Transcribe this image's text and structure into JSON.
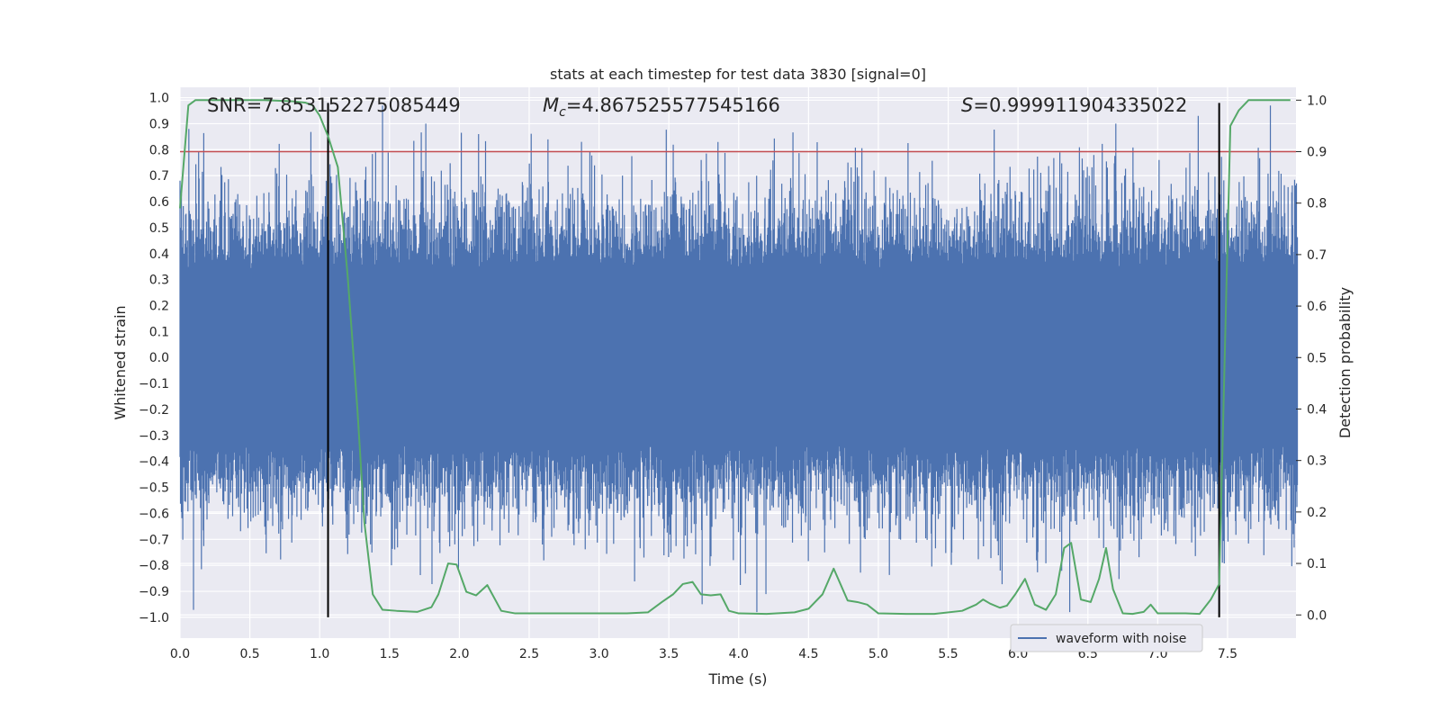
{
  "chart_data": {
    "type": "line",
    "title": "stats at each timestep for test data 3830 [signal=0]",
    "xlabel": "Time (s)",
    "ylabel_left": "Whitened strain",
    "ylabel_right": "Detection probability",
    "xlim": [
      0.0,
      7.99
    ],
    "ylim_left": [
      -1.08,
      1.04
    ],
    "ylim_right": [
      -0.045,
      1.025
    ],
    "x_ticks": [
      "0.0",
      "0.5",
      "1.0",
      "1.5",
      "2.0",
      "2.5",
      "3.0",
      "3.5",
      "4.0",
      "4.5",
      "5.0",
      "5.5",
      "6.0",
      "6.5",
      "7.0",
      "7.5"
    ],
    "x_tick_values": [
      0.0,
      0.5,
      1.0,
      1.5,
      2.0,
      2.5,
      3.0,
      3.5,
      4.0,
      4.5,
      5.0,
      5.5,
      6.0,
      6.5,
      7.0,
      7.5
    ],
    "y_left_ticks": [
      "1.0",
      "0.9",
      "0.8",
      "0.7",
      "0.6",
      "0.5",
      "0.4",
      "0.3",
      "0.2",
      "0.1",
      "0.0",
      "−0.1",
      "−0.2",
      "−0.3",
      "−0.4",
      "−0.5",
      "−0.6",
      "−0.7",
      "−0.8",
      "−0.9",
      "−1.0"
    ],
    "y_left_tick_values": [
      1.0,
      0.9,
      0.8,
      0.7,
      0.6,
      0.5,
      0.4,
      0.3,
      0.2,
      0.1,
      0.0,
      -0.1,
      -0.2,
      -0.3,
      -0.4,
      -0.5,
      -0.6,
      -0.7,
      -0.8,
      -0.9,
      -1.0
    ],
    "y_right_ticks": [
      "1.0",
      "0.9",
      "0.8",
      "0.7",
      "0.6",
      "0.5",
      "0.4",
      "0.3",
      "0.2",
      "0.1",
      "0.0"
    ],
    "y_right_tick_values": [
      1.0,
      0.9,
      0.8,
      0.7,
      0.6,
      0.5,
      0.4,
      0.3,
      0.2,
      0.1,
      0.0
    ],
    "annotations": {
      "snr": "SNR=7.853152275085449",
      "mc_symbol": "M",
      "mc_subscript": "c",
      "mc_value": "=4.867525577545166",
      "s_symbol": "S",
      "s_value": "=0.999911904335022"
    },
    "threshold": {
      "axis": "right",
      "value": 0.9,
      "color": "#c44e52"
    },
    "vlines": [
      {
        "x": 1.06,
        "y_range_left": [
          -1.0,
          0.98
        ],
        "color": "#000000"
      },
      {
        "x": 7.44,
        "y_range_left": [
          -1.0,
          0.98
        ],
        "color": "#000000"
      }
    ],
    "legend": {
      "label": "waveform with noise",
      "placement": "lower-right"
    },
    "series": [
      {
        "name": "waveform with noise",
        "axis": "left",
        "color": "#4c72b0",
        "kind": "dense-noise",
        "duration": 8.0,
        "typical_envelope": 0.45,
        "min_excursion": -0.98,
        "max_excursion": 0.97,
        "notable_peaks": [
          {
            "x": 1.45,
            "y": 0.97
          },
          {
            "x": 1.76,
            "y": 0.9
          },
          {
            "x": 6.7,
            "y": 0.9
          },
          {
            "x": 7.29,
            "y": 0.93
          },
          {
            "x": 4.13,
            "y": -0.98
          },
          {
            "x": 6.37,
            "y": -0.98
          }
        ]
      },
      {
        "name": "detection probability",
        "axis": "right",
        "color": "#55a868",
        "kind": "line",
        "x": [
          0.0,
          0.06,
          0.11,
          0.2,
          0.4,
          0.6,
          0.8,
          0.9,
          0.95,
          1.0,
          1.06,
          1.13,
          1.2,
          1.27,
          1.32,
          1.38,
          1.45,
          1.55,
          1.7,
          1.8,
          1.85,
          1.92,
          1.98,
          2.05,
          2.12,
          2.2,
          2.3,
          2.4,
          2.6,
          2.8,
          3.0,
          3.2,
          3.35,
          3.45,
          3.53,
          3.6,
          3.67,
          3.73,
          3.8,
          3.87,
          3.93,
          4.0,
          4.2,
          4.4,
          4.5,
          4.6,
          4.68,
          4.78,
          4.85,
          4.92,
          5.0,
          5.2,
          5.4,
          5.6,
          5.7,
          5.75,
          5.8,
          5.87,
          5.92,
          5.98,
          6.05,
          6.12,
          6.2,
          6.27,
          6.33,
          6.38,
          6.45,
          6.52,
          6.58,
          6.63,
          6.68,
          6.75,
          6.82,
          6.9,
          6.95,
          7.0,
          7.1,
          7.2,
          7.3,
          7.38,
          7.44,
          7.52,
          7.58,
          7.65,
          7.75,
          7.85,
          7.95
        ],
        "y": [
          0.79,
          0.99,
          1.0,
          1.0,
          1.0,
          1.0,
          0.998,
          0.995,
          0.99,
          0.97,
          0.93,
          0.87,
          0.66,
          0.4,
          0.18,
          0.04,
          0.01,
          0.008,
          0.006,
          0.015,
          0.04,
          0.1,
          0.098,
          0.045,
          0.038,
          0.058,
          0.008,
          0.003,
          0.003,
          0.003,
          0.003,
          0.003,
          0.005,
          0.025,
          0.04,
          0.06,
          0.064,
          0.04,
          0.038,
          0.04,
          0.008,
          0.003,
          0.002,
          0.005,
          0.012,
          0.04,
          0.09,
          0.028,
          0.025,
          0.02,
          0.003,
          0.002,
          0.002,
          0.008,
          0.02,
          0.03,
          0.022,
          0.014,
          0.018,
          0.04,
          0.07,
          0.02,
          0.01,
          0.04,
          0.13,
          0.14,
          0.03,
          0.025,
          0.07,
          0.13,
          0.05,
          0.003,
          0.002,
          0.006,
          0.02,
          0.003,
          0.003,
          0.003,
          0.002,
          0.03,
          0.06,
          0.95,
          0.98,
          1.0,
          1.0,
          1.0,
          1.0
        ]
      }
    ]
  }
}
